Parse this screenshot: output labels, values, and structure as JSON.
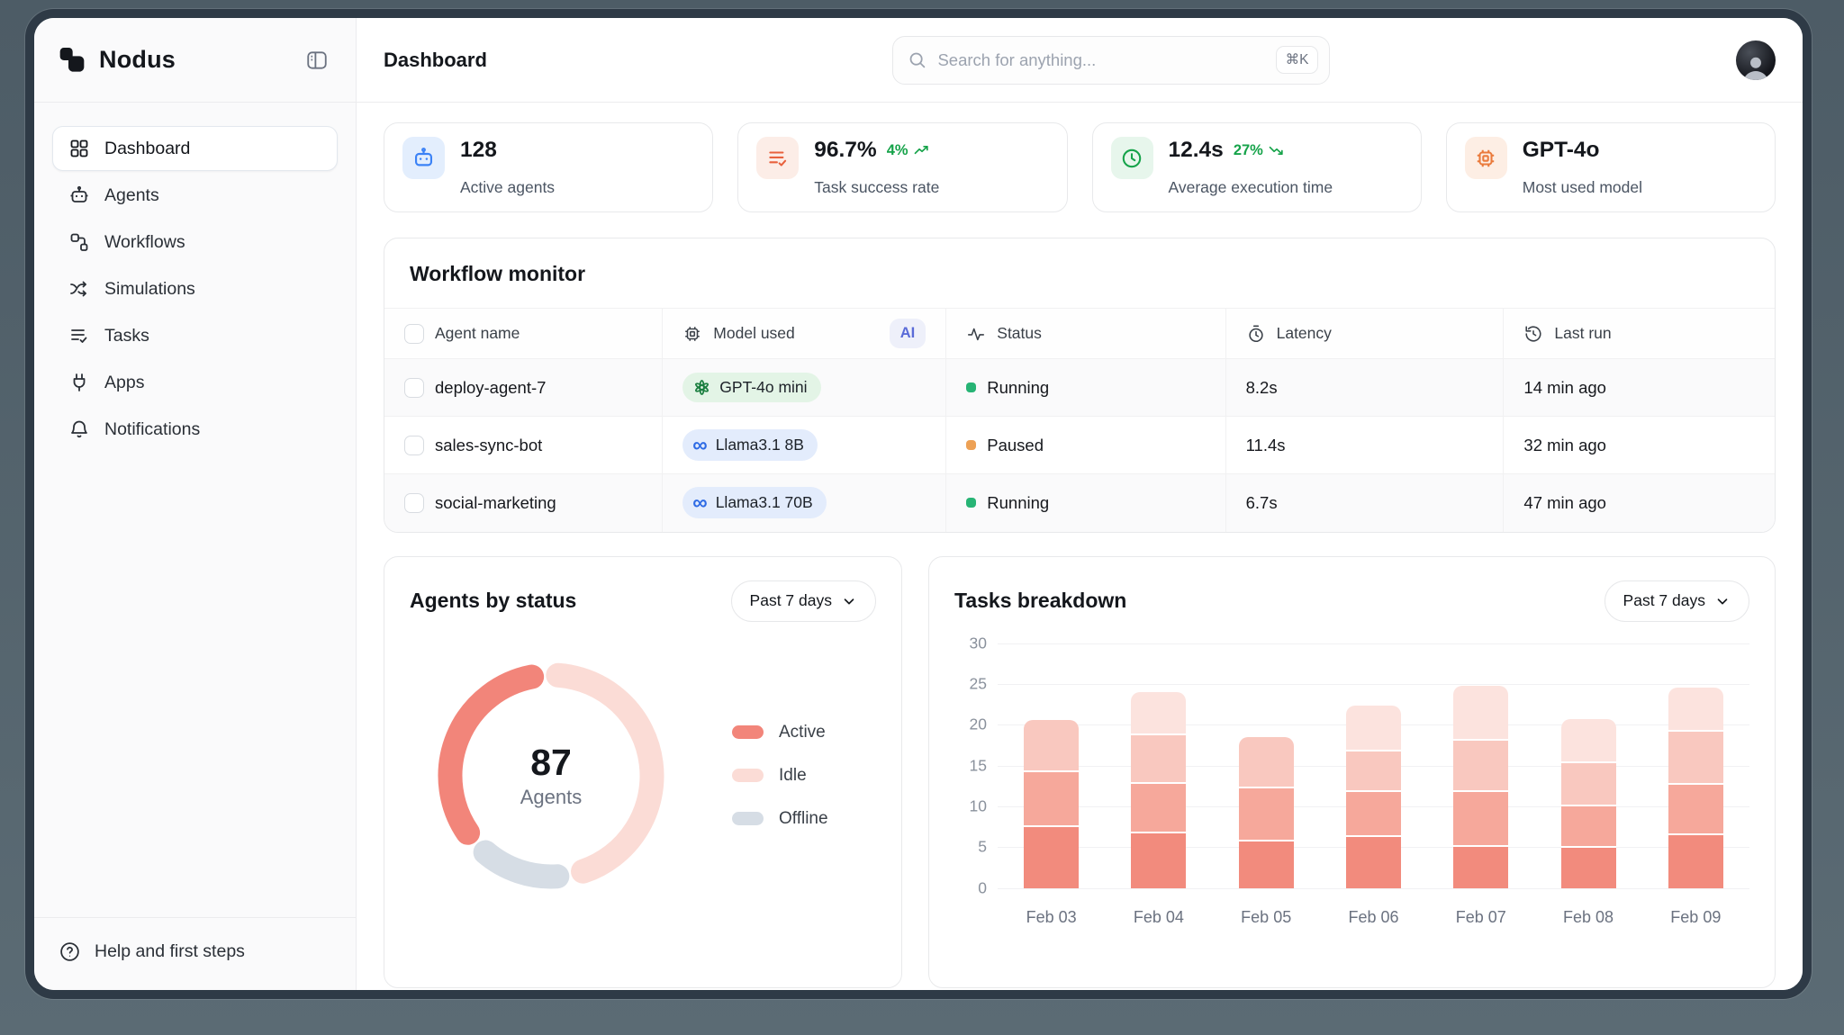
{
  "sidebar": {
    "brand": "Nodus",
    "items": [
      {
        "label": "Dashboard",
        "icon": "grid-icon",
        "active": true
      },
      {
        "label": "Agents",
        "icon": "robot-icon",
        "active": false
      },
      {
        "label": "Workflows",
        "icon": "nodes-icon",
        "active": false
      },
      {
        "label": "Simulations",
        "icon": "shuffle-icon",
        "active": false
      },
      {
        "label": "Tasks",
        "icon": "list-check-icon",
        "active": false
      },
      {
        "label": "Apps",
        "icon": "plug-icon",
        "active": false
      },
      {
        "label": "Notifications",
        "icon": "bell-icon",
        "active": false
      }
    ],
    "footer": {
      "label": "Help and first steps",
      "icon": "help-circle-icon"
    }
  },
  "header": {
    "title": "Dashboard",
    "search": {
      "placeholder": "Search for anything...",
      "shortcut": "⌘K"
    }
  },
  "stats": [
    {
      "value": "128",
      "label": "Active agents",
      "icon": "robot-icon",
      "icon_color": "#3b82f6",
      "icon_bg": "#e3eefd"
    },
    {
      "value": "96.7%",
      "trend": "4%",
      "trend_dir": "up",
      "label": "Task success rate",
      "icon": "list-check-icon",
      "icon_color": "#e8613d",
      "icon_bg": "#fcede7"
    },
    {
      "value": "12.4s",
      "trend": "27%",
      "trend_dir": "down",
      "label": "Average execution time",
      "icon": "clock-icon",
      "icon_color": "#16a34a",
      "icon_bg": "#e7f6ec"
    },
    {
      "value": "GPT-4o",
      "label": "Most used model",
      "icon": "cpu-icon",
      "icon_color": "#ea7a3b",
      "icon_bg": "#fdeee4"
    }
  ],
  "workflow_monitor": {
    "title": "Workflow monitor",
    "ai_badge": "AI",
    "columns": [
      {
        "label": "Agent name",
        "icon": "checkbox"
      },
      {
        "label": "Model used",
        "icon": "cpu-icon"
      },
      {
        "label": "Status",
        "icon": "activity-icon"
      },
      {
        "label": "Latency",
        "icon": "stopwatch-icon"
      },
      {
        "label": "Last run",
        "icon": "history-icon"
      }
    ],
    "rows": [
      {
        "agent": "deploy-agent-7",
        "model": "GPT-4o mini",
        "model_brand": "openai",
        "status": "Running",
        "latency": "8.2s",
        "last_run": "14 min ago"
      },
      {
        "agent": "sales-sync-bot",
        "model": "Llama3.1 8B",
        "model_brand": "meta",
        "status": "Paused",
        "latency": "11.4s",
        "last_run": "32 min ago"
      },
      {
        "agent": "social-marketing",
        "model": "Llama3.1 70B",
        "model_brand": "meta",
        "status": "Running",
        "latency": "6.7s",
        "last_run": "47 min ago"
      }
    ]
  },
  "agents_by_status": {
    "title": "Agents by status",
    "range": "Past 7 days",
    "center_value": "87",
    "center_label": "Agents"
  },
  "tasks_breakdown": {
    "title": "Tasks breakdown",
    "range": "Past 7 days"
  },
  "theme": {
    "accent_salmon": "#f2857a",
    "idle_pink": "#fbdcd6",
    "offline_gray": "#d6dde5",
    "running_green": "#27b475",
    "paused_orange": "#eda155",
    "trend_green": "#16a34a"
  },
  "chart_data": [
    {
      "type": "donut",
      "title": "Agents by status",
      "center": {
        "value": 87,
        "label": "Agents"
      },
      "legend": [
        "Active",
        "Idle",
        "Offline"
      ],
      "legend_position": "right",
      "segments_draw_order": [
        "Idle",
        "Offline",
        "Active"
      ],
      "segments": [
        {
          "name": "Idle",
          "share": 0.5,
          "color": "#fbdcd6"
        },
        {
          "name": "Offline",
          "share": 0.14,
          "color": "#d6dde5"
        },
        {
          "name": "Active",
          "share": 0.36,
          "color": "#f2857a"
        }
      ],
      "start_deg": 4,
      "gap_deg": 15
    },
    {
      "type": "bar-stacked",
      "title": "Tasks breakdown",
      "categories": [
        "Feb 03",
        "Feb 04",
        "Feb 05",
        "Feb 06",
        "Feb 07",
        "Feb 08",
        "Feb 09"
      ],
      "series": [
        {
          "name": "segment-1",
          "color": "#f28b7d",
          "values": [
            7.5,
            6.7,
            5.7,
            6.2,
            5.0,
            4.9,
            6.4
          ]
        },
        {
          "name": "segment-2",
          "color": "#f6a89b",
          "values": [
            6.7,
            6.0,
            6.5,
            5.5,
            6.7,
            5.1,
            6.2
          ]
        },
        {
          "name": "segment-3",
          "color": "#f9c8bf",
          "values": [
            6.4,
            6.0,
            6.3,
            5.0,
            6.3,
            5.3,
            6.5
          ]
        },
        {
          "name": "segment-4",
          "color": "#fce3de",
          "values": [
            0,
            5.3,
            0,
            5.6,
            6.8,
            5.4,
            5.4
          ]
        }
      ],
      "ylim": [
        0,
        30
      ],
      "yticks": [
        0,
        5,
        10,
        15,
        20,
        25,
        30
      ],
      "grid": true,
      "xlabel": "",
      "ylabel": ""
    }
  ]
}
